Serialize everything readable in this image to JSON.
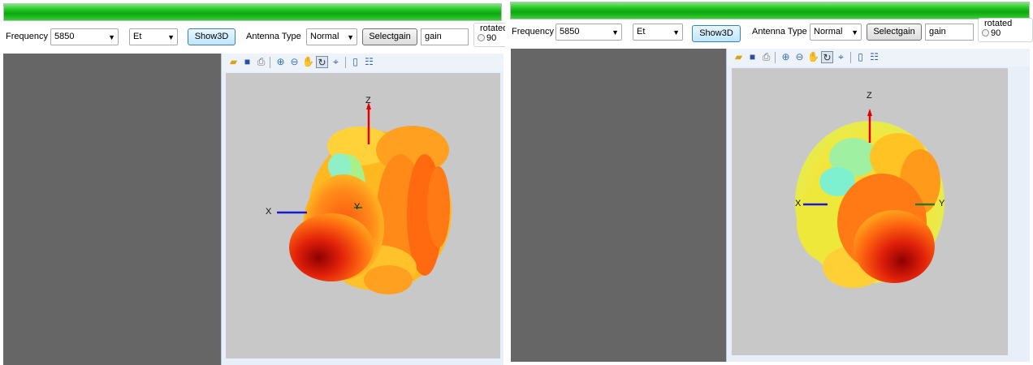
{
  "progress": {
    "fill_fraction": 1.0,
    "color": "#1fbf1f"
  },
  "colors": {
    "side_panel": "#666666",
    "canvas_bg": "#c8c8c8",
    "x_axis": "#1a1ad6",
    "y_axis": "#2a7a1a",
    "z_axis": "#e00000"
  },
  "toolbar": {
    "frequency_label": "Frequency",
    "frequency_value": "5850",
    "field_value": "Et",
    "show3d_label": "Show3D",
    "antenna_type_label": "Antenna Type",
    "antenna_type_value": "Normal",
    "selectgain_label": "Selectgain",
    "gain_value": "gain",
    "rotated_label": "rotated",
    "rotated_option": "90"
  },
  "view_toolbar_icons": [
    "open-icon",
    "save-icon",
    "print-icon",
    "zoom-in-icon",
    "zoom-out-icon",
    "pan-icon",
    "rotate-3d-icon",
    "data-cursor-icon",
    "colorbar-icon",
    "legend-icon"
  ],
  "plot": {
    "axis_x": "X",
    "axis_y": "Y",
    "axis_z": "Z"
  }
}
